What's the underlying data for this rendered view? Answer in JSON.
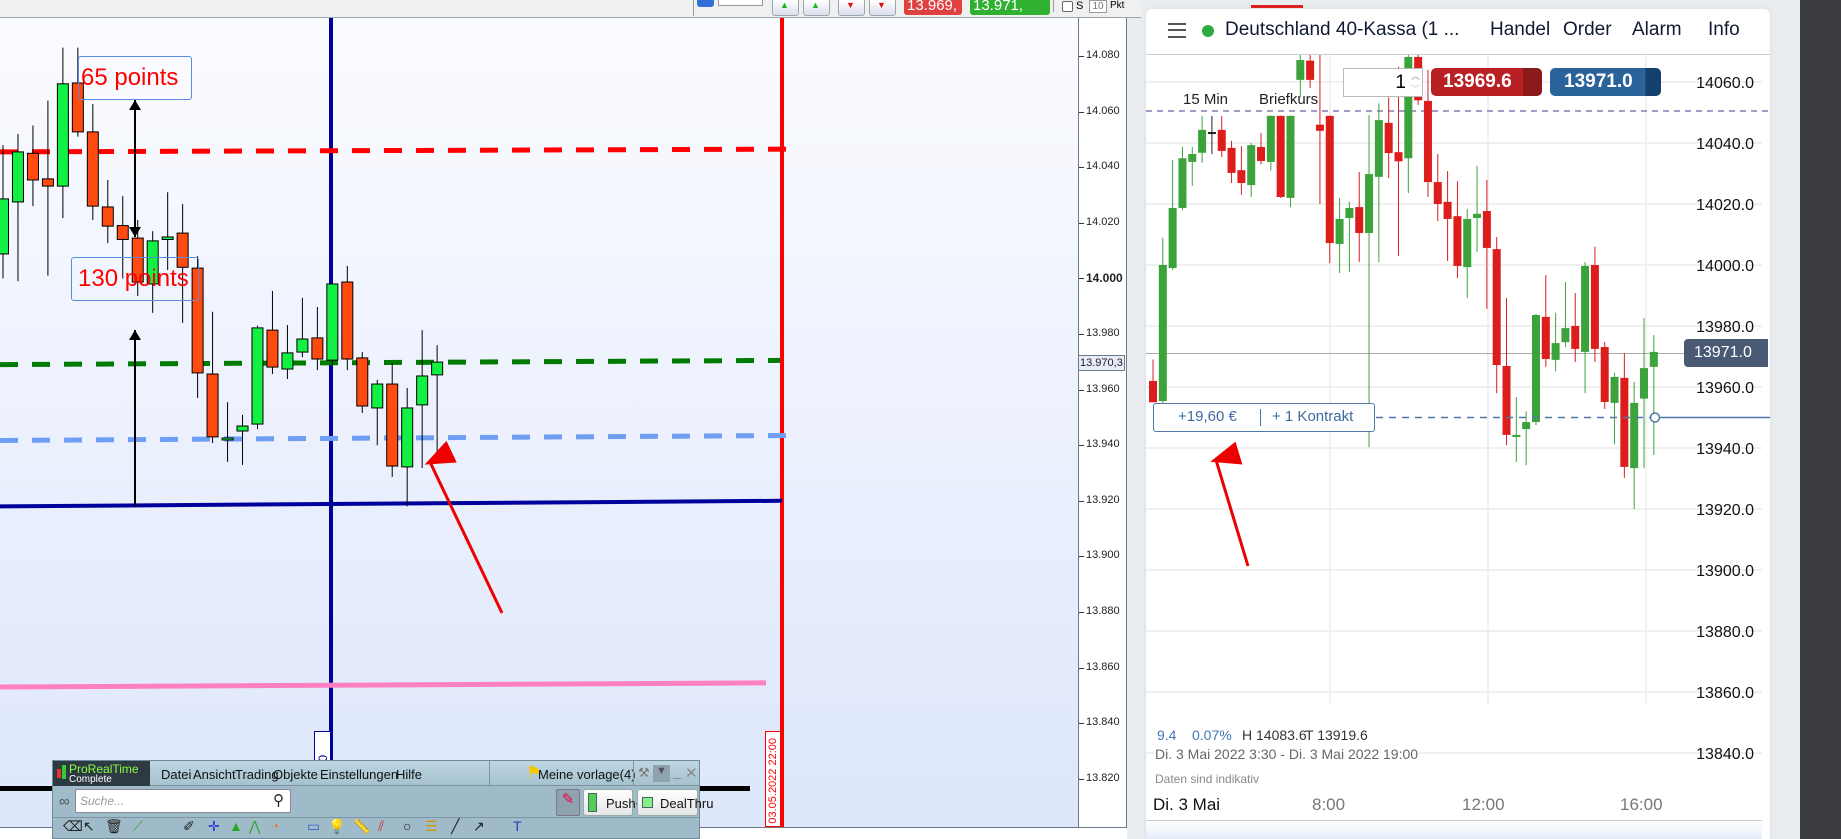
{
  "top_toolbar": {
    "sell_price": "13.969,",
    "buy_price": "13.971,",
    "checkbox_label": "S",
    "points_value": "10",
    "points_unit": "Pkt"
  },
  "left_chart": {
    "type": "candlestick",
    "colors": {
      "up": "#12f044",
      "down": "#ff4a10",
      "background": "#e6edfc"
    },
    "price_ticks": [
      "14.080",
      "14.060",
      "14.040",
      "14.020",
      "14.000",
      "13.980",
      "13.960",
      "13.940",
      "13.920",
      "13.900",
      "13.880",
      "13.860",
      "13.840",
      "13.820"
    ],
    "current_price_label": "13.970,3",
    "candles": [
      [
        14008.8,
        14048,
        14000,
        14028.6
      ],
      [
        14027.5,
        14052,
        13999,
        14045.5
      ],
      [
        14045,
        14055,
        14026,
        14035.4
      ],
      [
        14035.8,
        14064,
        14001,
        14033.2
      ],
      [
        14033.2,
        14083,
        14021.7,
        14070
      ],
      [
        14070.3,
        14083,
        14051,
        14052.7
      ],
      [
        14052.7,
        14062.7,
        14021,
        14026
      ],
      [
        14025.7,
        14035.4,
        14012.7,
        14018.8
      ],
      [
        14019,
        14029.6,
        14000,
        14014
      ],
      [
        14014.5,
        14021,
        13993.7,
        13998.7
      ],
      [
        13998,
        14017,
        13987.6,
        14013.5
      ],
      [
        14014,
        14031,
        14003,
        14014.9
      ],
      [
        14016.3,
        14026.8,
        13984,
        14004
      ],
      [
        14003.7,
        14008,
        13957,
        13966
      ],
      [
        13965.6,
        13988,
        13940.8,
        13943
      ],
      [
        13942.6,
        13955.5,
        13934,
        13942.6
      ],
      [
        13945.1,
        13950.9,
        13932.9,
        13946.9
      ],
      [
        13947.6,
        13983,
        13945.8,
        13982.2
      ],
      [
        13981.4,
        13995.5,
        13965.6,
        13968.1
      ],
      [
        13967.4,
        13983.2,
        13963.8,
        13973.2
      ],
      [
        13973.5,
        13993,
        13971.7,
        13978.2
      ],
      [
        13978.6,
        13989.7,
        13967,
        13971
      ],
      [
        13970.6,
        13998,
        13969,
        13998
      ],
      [
        13998.7,
        14004.5,
        13967,
        13971
      ],
      [
        13971.4,
        13973.5,
        13951.6,
        13954.1
      ],
      [
        13953.4,
        13963.5,
        13940,
        13962
      ],
      [
        13962,
        13969.6,
        13928.6,
        13932.5
      ],
      [
        13932.2,
        13960.6,
        13918,
        13953.4
      ],
      [
        13954.5,
        13981.4,
        13931.8,
        13964.9
      ],
      [
        13965.3,
        13976,
        13936,
        13969.9
      ]
    ],
    "horizontal_lines": [
      {
        "color": "#ff0000",
        "style": "dashed",
        "from": 14045.5,
        "to": 14046.5
      },
      {
        "color": "#007a00",
        "style": "dashed",
        "from": 13969,
        "to": 13970.5
      },
      {
        "color": "#6f9ef5",
        "style": "dashed",
        "from": 13941.7,
        "to": 13943.5
      },
      {
        "color": "#00009c",
        "style": "solid",
        "from": 13918,
        "to": 13920
      },
      {
        "color": "#ff80c0",
        "style": "solid",
        "from": 13853,
        "to": 13854.5
      },
      {
        "color": "#000000",
        "style": "solid",
        "from": 13816.5,
        "to": 13816.5
      }
    ],
    "vertical_lines": [
      {
        "color": "#00009c",
        "label": "4:30"
      },
      {
        "color": "#ff0000",
        "label": "03.05.2022 22:00"
      }
    ],
    "annotations": [
      "65 points",
      "130 points"
    ]
  },
  "prorealtime": {
    "logo_line1": "ProRealTime",
    "logo_line2": "Complete",
    "menu": [
      "Datei",
      "Ansicht",
      "Trading",
      "Objekte",
      "Einstellungen",
      "Hilfe"
    ],
    "template": "Meine vorlage(4)",
    "search_placeholder": "Suche...",
    "push_label": "Push+",
    "dealthru_label": "DealThru"
  },
  "right_panel": {
    "title": "Deutschland 40-Kassa (1 ...",
    "status_color": "#2faa3f",
    "tabs": [
      "Handel",
      "Order",
      "Alarm",
      "Info"
    ],
    "quantity": "1",
    "sell_price": "13969.6",
    "buy_price": "13971.0",
    "timeframe": "15 Min",
    "price_type": "Briefkurs",
    "position": {
      "pnl": "+19,60 €",
      "contracts": "+ 1 Kontrakt"
    },
    "current_price": "13971.0",
    "stats": {
      "change": "9.4",
      "change_pct": "0.07%",
      "high": "H 14083.6",
      "low": "T 13919.6"
    },
    "range": "Di. 3 Mai 2022 3:30 - Di. 3 Mai 2022 19:00",
    "disclaimer": "Daten sind indikativ",
    "date_label": "Di. 3 Mai",
    "time_ticks": [
      "8:00",
      "12:00",
      "16:00"
    ],
    "chart_data": {
      "type": "candlestick",
      "x_start": "3:30",
      "interval_min": 15,
      "colors": {
        "up": "#3ca33c",
        "down": "#dd1c1c"
      },
      "price_ticks": [
        "14060.0",
        "14040.0",
        "14020.0",
        "14000.0",
        "13980.0",
        "13960.0",
        "13940.0",
        "13920.0",
        "13900.0",
        "13880.0",
        "13860.0",
        "13840.0"
      ],
      "levels": {
        "dashed_purple": 14050.5,
        "current": 13971,
        "position": 13950
      },
      "candles": [
        [
          13962,
          13969,
          13955,
          13955
        ],
        [
          13955.4,
          14008.9,
          13954,
          14000
        ],
        [
          13999,
          14034.4,
          13998.4,
          14018.7
        ],
        [
          14018.7,
          14038.7,
          14018,
          14035
        ],
        [
          14033.8,
          14038.7,
          14026,
          14036.4
        ],
        [
          14036.8,
          14048.9,
          14033.5,
          14044.3
        ],
        [
          14043.6,
          14048.9,
          14036.4,
          14043.6
        ],
        [
          14044.3,
          14048.9,
          14035.4,
          14037.4
        ],
        [
          14038.4,
          14040.7,
          14026.9,
          14030.2
        ],
        [
          14031.1,
          14039,
          14023,
          14026.9
        ],
        [
          14026.2,
          14040,
          14022.3,
          14039.3
        ],
        [
          14038.7,
          14043.3,
          14033,
          14034.1
        ],
        [
          14033.8,
          14049,
          14031,
          14048.9
        ],
        [
          14048.9,
          14049,
          14022,
          14022.3
        ],
        [
          14022,
          14049,
          14019,
          14048.9
        ],
        [
          14060.7,
          14080,
          14055,
          14067.2
        ],
        [
          14067,
          14080,
          14058,
          14060.7
        ],
        [
          14046,
          14070,
          14020,
          14044
        ],
        [
          14048.9,
          14049,
          14000.6,
          14007.2
        ],
        [
          14006.9,
          14022,
          13997.4,
          14015.1
        ],
        [
          14015.4,
          14020.7,
          13997.7,
          14018.7
        ],
        [
          14019,
          14030.5,
          14001,
          14010.5
        ],
        [
          14010.5,
          14049.2,
          13940.3,
          14029.8
        ],
        [
          14028.9,
          14053,
          14001,
          14047.5
        ],
        [
          14046.6,
          14055,
          14028.5,
          14036.7
        ],
        [
          14037,
          14065,
          14003,
          14034
        ],
        [
          14035,
          14083.6,
          14023.6,
          14068.2
        ],
        [
          14068.2,
          14083,
          14052.5,
          14054
        ],
        [
          14053.8,
          14064,
          14022.3,
          14027.2
        ],
        [
          14027.2,
          14036.4,
          14014.4,
          14020
        ],
        [
          14020.7,
          14030.8,
          14001.3,
          14015.1
        ],
        [
          14016,
          14027.5,
          13995.7,
          13999.7
        ],
        [
          13999.3,
          14018.4,
          13989.2,
          14015.1
        ],
        [
          14015.4,
          14032.5,
          14004.3,
          14016.8
        ],
        [
          14017.7,
          14027.9,
          13985.6,
          14005.6
        ],
        [
          14005.2,
          14009.2,
          13958,
          13967.2
        ],
        [
          13966.9,
          13989.2,
          13941,
          13944.3
        ],
        [
          13943.6,
          13956.7,
          13935.4,
          13944.3
        ],
        [
          13946.2,
          13952,
          13934.4,
          13948.5
        ],
        [
          13948.5,
          13984,
          13947.5,
          13983.6
        ],
        [
          13983,
          13996.7,
          13966.6,
          13969.2
        ],
        [
          13968.9,
          13984.3,
          13965.2,
          13974.4
        ],
        [
          13974.7,
          13994.4,
          13973.1,
          13979.3
        ],
        [
          13980,
          13990.8,
          13968.2,
          13972.5
        ],
        [
          13971.5,
          14001,
          13958,
          13999.7
        ],
        [
          14000,
          14006,
          13968.2,
          13972.5
        ],
        [
          13973.1,
          13974.8,
          13952.8,
          13955.1
        ],
        [
          13954.8,
          13964.6,
          13941.3,
          13963.3
        ],
        [
          13963,
          13971.1,
          13930.2,
          13933.8
        ],
        [
          13933.4,
          13961.7,
          13920,
          13954.8
        ],
        [
          13956.2,
          13982.6,
          13933.4,
          13966.2
        ],
        [
          13966.6,
          13977,
          13937.7,
          13971.5
        ]
      ]
    }
  }
}
